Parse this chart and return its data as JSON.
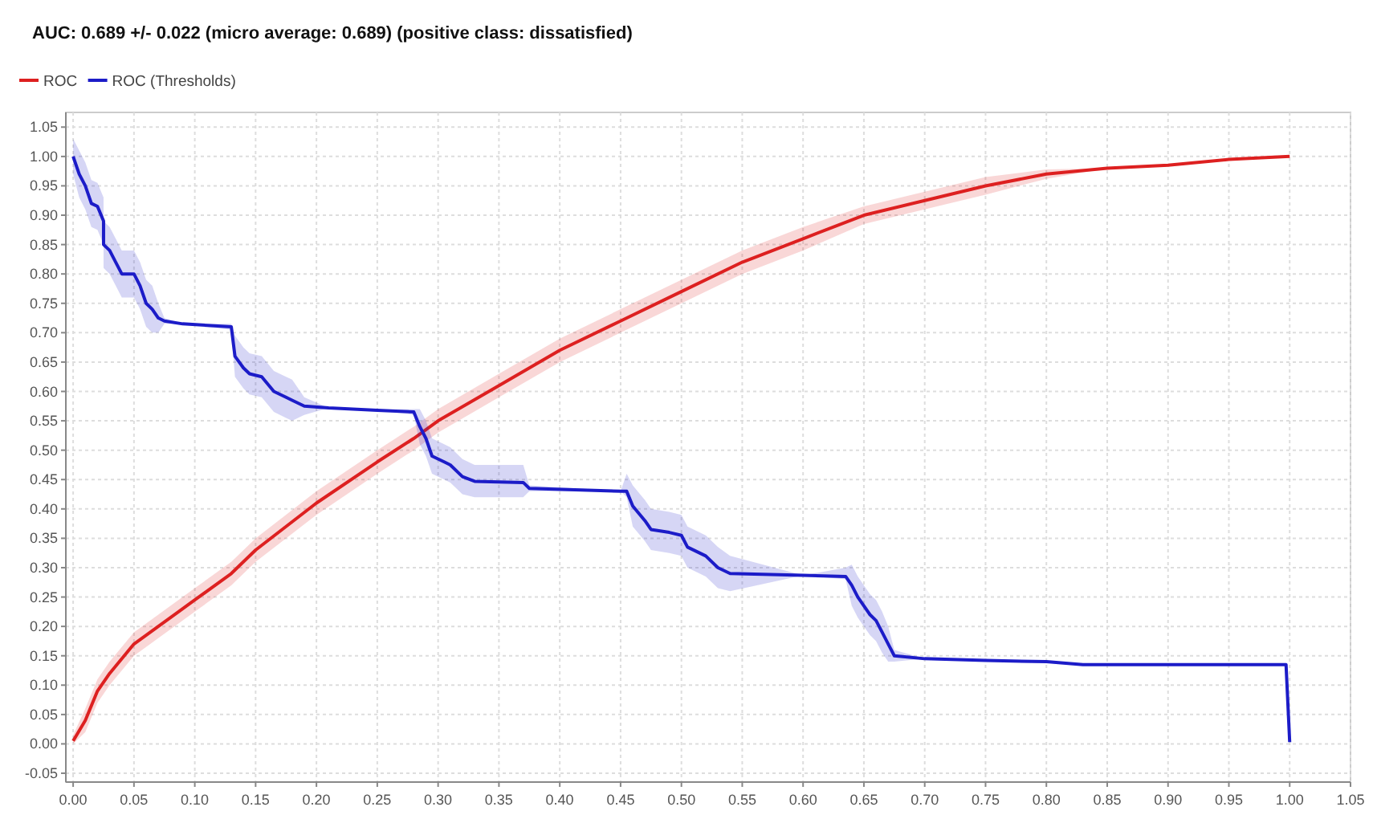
{
  "chart_data": {
    "type": "line",
    "title": "AUC: 0.689 +/- 0.022 (micro average: 0.689) (positive class: dissatisfied)",
    "xlim": [
      -0.006,
      1.05
    ],
    "ylim": [
      -0.065,
      1.075
    ],
    "xticks": [
      {
        "value": 0,
        "label": "0.00"
      },
      {
        "value": 0.05,
        "label": "0.05"
      },
      {
        "value": 0.1,
        "label": "0.10"
      },
      {
        "value": 0.15,
        "label": "0.15"
      },
      {
        "value": 0.2,
        "label": "0.20"
      },
      {
        "value": 0.25,
        "label": "0.25"
      },
      {
        "value": 0.3,
        "label": "0.30"
      },
      {
        "value": 0.35,
        "label": "0.35"
      },
      {
        "value": 0.4,
        "label": "0.40"
      },
      {
        "value": 0.45,
        "label": "0.45"
      },
      {
        "value": 0.5,
        "label": "0.50"
      },
      {
        "value": 0.55,
        "label": "0.55"
      },
      {
        "value": 0.6,
        "label": "0.60"
      },
      {
        "value": 0.65,
        "label": "0.65"
      },
      {
        "value": 0.7,
        "label": "0.70"
      },
      {
        "value": 0.75,
        "label": "0.75"
      },
      {
        "value": 0.8,
        "label": "0.80"
      },
      {
        "value": 0.85,
        "label": "0.85"
      },
      {
        "value": 0.9,
        "label": "0.90"
      },
      {
        "value": 0.95,
        "label": "0.95"
      },
      {
        "value": 1,
        "label": "1.00"
      },
      {
        "value": 1.05,
        "label": "1.05"
      }
    ],
    "yticks": [
      {
        "value": -0.05,
        "label": "-0.05"
      },
      {
        "value": 0,
        "label": "0.00"
      },
      {
        "value": 0.05,
        "label": "0.05"
      },
      {
        "value": 0.1,
        "label": "0.10"
      },
      {
        "value": 0.15,
        "label": "0.15"
      },
      {
        "value": 0.2,
        "label": "0.20"
      },
      {
        "value": 0.25,
        "label": "0.25"
      },
      {
        "value": 0.3,
        "label": "0.30"
      },
      {
        "value": 0.35,
        "label": "0.35"
      },
      {
        "value": 0.4,
        "label": "0.40"
      },
      {
        "value": 0.45,
        "label": "0.45"
      },
      {
        "value": 0.5,
        "label": "0.50"
      },
      {
        "value": 0.55,
        "label": "0.55"
      },
      {
        "value": 0.6,
        "label": "0.60"
      },
      {
        "value": 0.65,
        "label": "0.65"
      },
      {
        "value": 0.7,
        "label": "0.70"
      },
      {
        "value": 0.75,
        "label": "0.75"
      },
      {
        "value": 0.8,
        "label": "0.80"
      },
      {
        "value": 0.85,
        "label": "0.85"
      },
      {
        "value": 0.9,
        "label": "0.90"
      },
      {
        "value": 0.95,
        "label": "0.95"
      },
      {
        "value": 1,
        "label": "1.00"
      },
      {
        "value": 1.05,
        "label": "1.05"
      }
    ],
    "grid": true,
    "legend": "top left",
    "line_style": "solid",
    "marker": "none",
    "series": [
      {
        "name": "ROC",
        "color": "#dd2020",
        "x": [
          0,
          0.01,
          0.02,
          0.03,
          0.05,
          0.07,
          0.1,
          0.13,
          0.15,
          0.2,
          0.25,
          0.28,
          0.3,
          0.35,
          0.4,
          0.45,
          0.5,
          0.55,
          0.6,
          0.65,
          0.7,
          0.75,
          0.8,
          0.85,
          0.9,
          0.95,
          1
        ],
        "values": [
          0.005,
          0.04,
          0.09,
          0.12,
          0.17,
          0.2,
          0.245,
          0.29,
          0.33,
          0.41,
          0.48,
          0.52,
          0.55,
          0.61,
          0.67,
          0.72,
          0.77,
          0.82,
          0.86,
          0.9,
          0.925,
          0.95,
          0.97,
          0.98,
          0.985,
          0.995,
          1
        ],
        "lower": [
          0,
          0.02,
          0.07,
          0.1,
          0.15,
          0.18,
          0.225,
          0.27,
          0.31,
          0.39,
          0.46,
          0.5,
          0.53,
          0.59,
          0.65,
          0.7,
          0.75,
          0.8,
          0.84,
          0.885,
          0.91,
          0.935,
          0.962,
          0.98,
          0.985,
          0.995,
          1
        ],
        "upper": [
          0.015,
          0.06,
          0.11,
          0.14,
          0.19,
          0.22,
          0.265,
          0.31,
          0.35,
          0.43,
          0.5,
          0.54,
          0.57,
          0.63,
          0.69,
          0.74,
          0.79,
          0.84,
          0.88,
          0.915,
          0.94,
          0.965,
          0.978,
          0.98,
          0.985,
          0.995,
          1
        ]
      },
      {
        "name": "ROC (Thresholds)",
        "color": "#1c1cc8",
        "x": [
          0,
          0.005,
          0.01,
          0.015,
          0.02,
          0.025,
          0.025,
          0.03,
          0.035,
          0.04,
          0.05,
          0.055,
          0.06,
          0.065,
          0.07,
          0.075,
          0.09,
          0.13,
          0.133,
          0.14,
          0.145,
          0.155,
          0.165,
          0.175,
          0.18,
          0.19,
          0.21,
          0.25,
          0.28,
          0.285,
          0.29,
          0.295,
          0.305,
          0.31,
          0.32,
          0.33,
          0.37,
          0.375,
          0.45,
          0.455,
          0.46,
          0.47,
          0.475,
          0.49,
          0.5,
          0.505,
          0.52,
          0.53,
          0.54,
          0.6,
          0.635,
          0.64,
          0.645,
          0.655,
          0.66,
          0.665,
          0.67,
          0.675,
          0.7,
          0.75,
          0.8,
          0.83,
          0.9,
          0.997,
          1
        ],
        "values": [
          1,
          0.97,
          0.95,
          0.92,
          0.915,
          0.89,
          0.85,
          0.84,
          0.82,
          0.8,
          0.8,
          0.78,
          0.75,
          0.74,
          0.725,
          0.72,
          0.715,
          0.71,
          0.66,
          0.64,
          0.63,
          0.625,
          0.6,
          0.59,
          0.585,
          0.575,
          0.572,
          0.568,
          0.565,
          0.54,
          0.52,
          0.49,
          0.48,
          0.475,
          0.455,
          0.447,
          0.445,
          0.435,
          0.43,
          0.43,
          0.405,
          0.38,
          0.365,
          0.36,
          0.355,
          0.335,
          0.32,
          0.3,
          0.29,
          0.287,
          0.285,
          0.27,
          0.25,
          0.22,
          0.21,
          0.19,
          0.17,
          0.15,
          0.145,
          0.142,
          0.14,
          0.135,
          0.135,
          0.135,
          0.003
        ],
        "lower": [
          0.97,
          0.93,
          0.91,
          0.88,
          0.875,
          0.85,
          0.81,
          0.8,
          0.78,
          0.76,
          0.76,
          0.74,
          0.71,
          0.7,
          0.7,
          0.715,
          0.715,
          0.705,
          0.625,
          0.605,
          0.595,
          0.59,
          0.565,
          0.555,
          0.55,
          0.56,
          0.572,
          0.568,
          0.56,
          0.51,
          0.49,
          0.46,
          0.45,
          0.445,
          0.425,
          0.42,
          0.42,
          0.43,
          0.43,
          0.42,
          0.37,
          0.345,
          0.33,
          0.325,
          0.32,
          0.3,
          0.285,
          0.265,
          0.26,
          0.287,
          0.28,
          0.235,
          0.215,
          0.185,
          0.175,
          0.155,
          0.14,
          0.14,
          0.145,
          0.142,
          0.14,
          0.135,
          0.135,
          0.135,
          0.003
        ],
        "upper": [
          1.03,
          1.01,
          0.99,
          0.96,
          0.955,
          0.93,
          0.89,
          0.88,
          0.86,
          0.84,
          0.84,
          0.82,
          0.79,
          0.78,
          0.75,
          0.725,
          0.715,
          0.715,
          0.695,
          0.675,
          0.665,
          0.66,
          0.635,
          0.625,
          0.62,
          0.59,
          0.572,
          0.568,
          0.57,
          0.57,
          0.55,
          0.52,
          0.51,
          0.505,
          0.485,
          0.475,
          0.475,
          0.44,
          0.43,
          0.46,
          0.44,
          0.415,
          0.4,
          0.395,
          0.39,
          0.37,
          0.355,
          0.335,
          0.32,
          0.287,
          0.3,
          0.305,
          0.285,
          0.255,
          0.245,
          0.225,
          0.2,
          0.16,
          0.145,
          0.142,
          0.14,
          0.135,
          0.135,
          0.135,
          0.003
        ]
      }
    ]
  }
}
